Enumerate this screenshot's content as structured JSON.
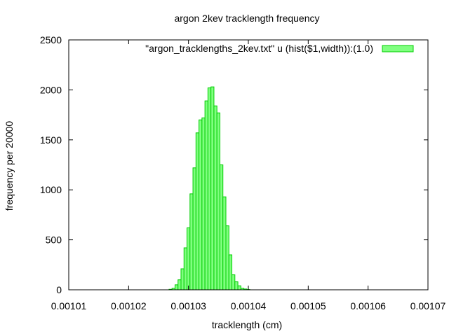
{
  "chart_data": {
    "type": "bar",
    "title": "argon 2kev tracklength frequency",
    "xlabel": "tracklength (cm)",
    "ylabel": "frequency per 20000",
    "xlim": [
      0.00101,
      0.00107
    ],
    "ylim": [
      0,
      2500
    ],
    "xticks": [
      "0.00101",
      "0.00102",
      "0.00103",
      "0.00104",
      "0.00105",
      "0.00106",
      "0.00107"
    ],
    "yticks": [
      "0",
      "500",
      "1000",
      "1500",
      "2000",
      "2500"
    ],
    "legend_position": "top-right",
    "grid": false,
    "bar_fill_color": "#80ff80",
    "bar_edge_color": "#00cc00",
    "series": [
      {
        "name": "\"argon_tracklengths_2kev.txt\" u (hist($1,width)):(1.0)",
        "x": [
          0.001027,
          0.0010275,
          0.001028,
          0.0010285,
          0.001029,
          0.0010295,
          0.00103,
          0.0010305,
          0.001031,
          0.0010315,
          0.001032,
          0.0010325,
          0.001033,
          0.0010335,
          0.001034,
          0.0010345,
          0.001035,
          0.0010355,
          0.001036,
          0.0010365,
          0.001037,
          0.0010375,
          0.001038,
          0.0010385,
          0.001039,
          0.0010395,
          0.00104
        ],
        "values": [
          5,
          15,
          50,
          100,
          210,
          420,
          620,
          960,
          1220,
          1570,
          1700,
          1720,
          1890,
          2020,
          2030,
          1840,
          1770,
          1250,
          930,
          640,
          350,
          150,
          80,
          40,
          15,
          8,
          3
        ]
      }
    ]
  }
}
